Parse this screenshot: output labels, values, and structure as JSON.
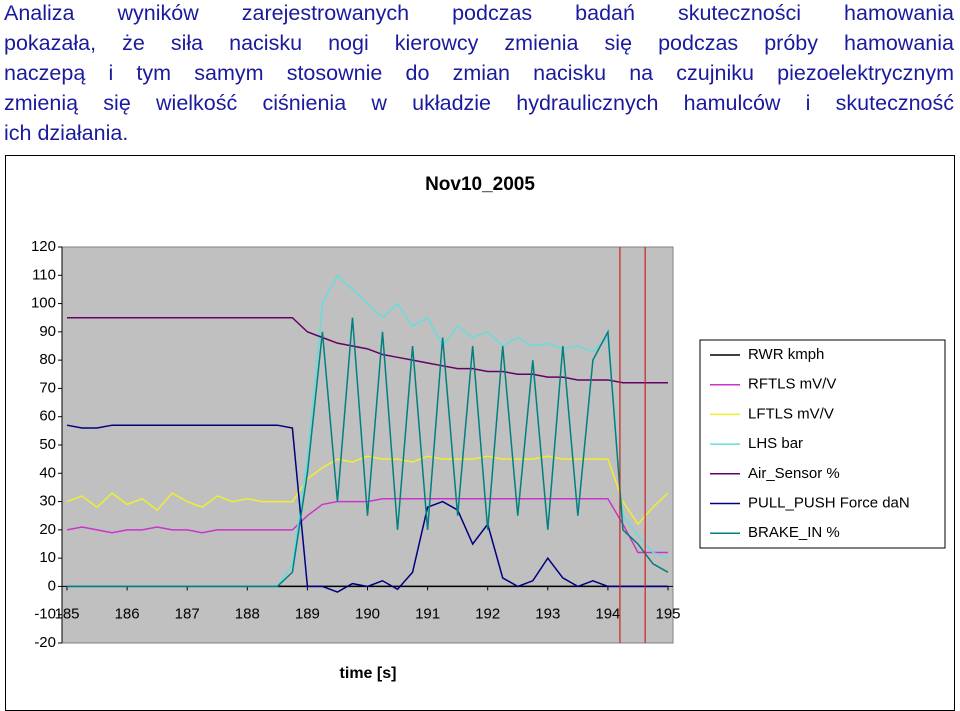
{
  "paragraph_lines": [
    "Analiza wyników zarejestrowanych podczas badań skuteczności hamowania",
    "pokazała, że siła nacisku nogi kierowcy zmienia się podczas próby hamowania",
    "naczepą i tym samym stosownie do zmian nacisku na czujniku piezoelektrycznym",
    "zmienią się wielkość ciśnienia w układzie hydraulicznych hamulców i skuteczność",
    "ich działania."
  ],
  "chart_data": {
    "type": "line",
    "title": "Nov10_2005",
    "x_label": "time [s]",
    "x": [
      185,
      185.25,
      185.5,
      185.75,
      186,
      186.25,
      186.5,
      186.75,
      187,
      187.25,
      187.5,
      187.75,
      188,
      188.25,
      188.5,
      188.75,
      189,
      189.25,
      189.5,
      189.75,
      190,
      190.25,
      190.5,
      190.75,
      191,
      191.25,
      191.5,
      191.75,
      192,
      192.25,
      192.5,
      192.75,
      193,
      193.25,
      193.5,
      193.75,
      194,
      194.25,
      194.5,
      194.75,
      195
    ],
    "xlim": [
      185,
      195
    ],
    "xticks": [
      185,
      186,
      187,
      188,
      189,
      190,
      191,
      192,
      193,
      194,
      195
    ],
    "ylim": [
      -20,
      120
    ],
    "yticks": [
      -20,
      -10,
      0,
      10,
      20,
      30,
      40,
      50,
      60,
      70,
      80,
      90,
      100,
      110,
      120
    ],
    "vlines": [
      194.2,
      194.62
    ],
    "vline_color": "#cc2222",
    "legend": "right",
    "series": [
      {
        "name": "RWR kmph",
        "color": "#000000",
        "values": [
          0,
          0,
          0,
          0,
          0,
          0,
          0,
          0,
          0,
          0,
          0,
          0,
          0,
          0,
          0,
          0,
          0,
          0,
          0,
          0,
          0,
          0,
          0,
          0,
          0,
          0,
          0,
          0,
          0,
          0,
          0,
          0,
          0,
          0,
          0,
          0,
          0,
          0,
          0,
          0,
          0
        ]
      },
      {
        "name": "RFTLS mV/V",
        "color": "#cc33cc",
        "values": [
          20,
          21,
          20,
          19,
          20,
          20,
          21,
          20,
          20,
          19,
          20,
          20,
          20,
          20,
          20,
          20,
          25,
          29,
          30,
          30,
          30,
          31,
          31,
          31,
          31,
          31,
          31,
          31,
          31,
          31,
          31,
          31,
          31,
          31,
          31,
          31,
          31,
          22,
          12,
          12,
          12
        ]
      },
      {
        "name": "LFTLS mV/V",
        "color": "#eeee33",
        "values": [
          30,
          32,
          28,
          33,
          29,
          31,
          27,
          33,
          30,
          28,
          32,
          30,
          31,
          30,
          30,
          30,
          38,
          42,
          45,
          44,
          46,
          45,
          45,
          44,
          46,
          45,
          45,
          45,
          46,
          45,
          45,
          45,
          46,
          45,
          45,
          45,
          45,
          30,
          22,
          28,
          33
        ]
      },
      {
        "name": "LHS bar",
        "color": "#66dddd",
        "values": [
          0,
          0,
          0,
          0,
          0,
          0,
          0,
          0,
          0,
          0,
          0,
          0,
          0,
          0,
          0,
          8,
          45,
          100,
          110,
          105,
          100,
          95,
          100,
          92,
          95,
          85,
          92,
          88,
          90,
          85,
          88,
          85,
          86,
          84,
          85,
          83,
          88,
          25,
          18,
          12,
          10
        ]
      },
      {
        "name": "Air_Sensor %",
        "color": "#660066",
        "values": [
          95,
          95,
          95,
          95,
          95,
          95,
          95,
          95,
          95,
          95,
          95,
          95,
          95,
          95,
          95,
          95,
          90,
          88,
          86,
          85,
          84,
          82,
          81,
          80,
          79,
          78,
          77,
          77,
          76,
          76,
          75,
          75,
          74,
          74,
          73,
          73,
          73,
          72,
          72,
          72,
          72
        ]
      },
      {
        "name": "PULL_PUSH Force daN",
        "color": "#000080",
        "values": [
          57,
          56,
          56,
          57,
          57,
          57,
          57,
          57,
          57,
          57,
          57,
          57,
          57,
          57,
          57,
          56,
          0,
          0,
          -2,
          1,
          0,
          2,
          -1,
          5,
          28,
          30,
          27,
          15,
          22,
          3,
          0,
          2,
          10,
          3,
          0,
          2,
          0,
          0,
          0,
          0,
          0
        ]
      },
      {
        "name": "BRAKE_IN %",
        "color": "#008080",
        "values": [
          0,
          0,
          0,
          0,
          0,
          0,
          0,
          0,
          0,
          0,
          0,
          0,
          0,
          0,
          0,
          5,
          40,
          90,
          30,
          95,
          25,
          90,
          20,
          85,
          20,
          88,
          25,
          85,
          20,
          85,
          25,
          80,
          20,
          85,
          25,
          80,
          90,
          20,
          15,
          8,
          5
        ]
      }
    ]
  }
}
